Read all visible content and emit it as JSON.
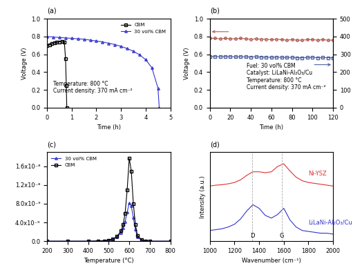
{
  "chart_data": [
    {
      "type": "line",
      "panel": "(a)",
      "x_label": "Time (h)",
      "y_label": "Voltage (V)",
      "xlim": [
        0,
        5
      ],
      "xticks": [
        0,
        1,
        2,
        3,
        4,
        5
      ],
      "ylim": [
        0.0,
        1.0
      ],
      "yticks": [
        0.0,
        0.2,
        0.4,
        0.6,
        0.8,
        1.0
      ],
      "legend": "upper right",
      "annotations": [
        "Temperature: 800 °C",
        "Current density: 370 mA cm⁻²"
      ],
      "series": [
        {
          "name": "CBM",
          "color": "#000000",
          "marker": "square",
          "x": [
            0,
            0.1,
            0.2,
            0.3,
            0.4,
            0.5,
            0.6,
            0.7,
            0.75,
            0.78,
            0.8
          ],
          "values": [
            0.7,
            0.71,
            0.72,
            0.73,
            0.735,
            0.74,
            0.745,
            0.74,
            0.55,
            0.25,
            0.0
          ]
        },
        {
          "name": "30 vol% CBM",
          "color": "#3333cc",
          "marker": "triangle",
          "x": [
            0,
            0.25,
            0.5,
            0.75,
            1,
            1.25,
            1.5,
            1.75,
            2,
            2.25,
            2.5,
            2.75,
            3,
            3.25,
            3.5,
            3.75,
            4,
            4.25,
            4.5,
            4.55
          ],
          "values": [
            0.8,
            0.795,
            0.79,
            0.785,
            0.78,
            0.775,
            0.77,
            0.76,
            0.75,
            0.74,
            0.725,
            0.71,
            0.69,
            0.665,
            0.635,
            0.595,
            0.54,
            0.45,
            0.22,
            0.0
          ]
        }
      ]
    },
    {
      "type": "line",
      "panel": "(b)",
      "x_label": "Time (h)",
      "y_label": "Voltage (V)",
      "xlim": [
        0,
        120
      ],
      "xticks": [
        0,
        20,
        40,
        60,
        80,
        100,
        120
      ],
      "ylim": [
        0.0,
        1.0
      ],
      "yticks": [
        0.0,
        0.2,
        0.4,
        0.6,
        0.8,
        1.0
      ],
      "y2lim": [
        0,
        500
      ],
      "y2ticks": [
        0,
        100,
        200,
        300,
        400,
        500
      ],
      "annotations": [
        "Fuel: 30 vol% CBM",
        "Catalyst: LiLaNi-Al₂O₃/Cu",
        "Temperature: 800 °C",
        "Current density: 370 mA cm⁻²"
      ],
      "series": [
        {
          "color": "#b05a50",
          "marker": "circle",
          "x": [
            0,
            5,
            10,
            15,
            20,
            25,
            30,
            35,
            40,
            45,
            50,
            55,
            60,
            65,
            70,
            75,
            80,
            85,
            90,
            95,
            100,
            105,
            110,
            115,
            120
          ],
          "values": [
            0.78,
            0.78,
            0.775,
            0.78,
            0.775,
            0.775,
            0.78,
            0.775,
            0.77,
            0.775,
            0.77,
            0.77,
            0.765,
            0.77,
            0.765,
            0.76,
            0.765,
            0.76,
            0.76,
            0.765,
            0.765,
            0.76,
            0.765,
            0.76,
            0.76
          ]
        },
        {
          "color": "#5060a0",
          "marker": "square",
          "axis": "y2",
          "x": [
            0,
            5,
            10,
            15,
            20,
            25,
            30,
            35,
            40,
            45,
            50,
            55,
            60,
            65,
            70,
            75,
            80,
            85,
            90,
            95,
            100,
            105,
            110,
            115,
            120
          ],
          "values": [
            289,
            288,
            287,
            288,
            287,
            286,
            287,
            286,
            285,
            286,
            285,
            284,
            283,
            284,
            283,
            282,
            283,
            281,
            281,
            282,
            283,
            281,
            282,
            281,
            281
          ]
        }
      ]
    },
    {
      "type": "line",
      "panel": "(c)",
      "x_label": "Temperature (°C)",
      "xlim": [
        200,
        800
      ],
      "xticks": [
        200,
        300,
        400,
        500,
        600,
        700,
        800
      ],
      "ylim": [
        0,
        1.9e-08
      ],
      "yticks": [
        {
          "value": 0,
          "label": "0.0"
        },
        {
          "value": 4e-09,
          "label": "4.0x10⁻⁹"
        },
        {
          "value": 8e-09,
          "label": "8.0x10⁻⁹"
        },
        {
          "value": 1.2e-08,
          "label": "1.2x10⁻⁸"
        },
        {
          "value": 1.6e-08,
          "label": "1.6x10⁻⁸"
        }
      ],
      "legend": "upper left",
      "series": [
        {
          "name": "30 vol% CBM",
          "color": "#3333cc",
          "marker": "triangle",
          "x": [
            200,
            300,
            400,
            450,
            480,
            500,
            520,
            540,
            560,
            570,
            580,
            590,
            600,
            610,
            620,
            630,
            640,
            660,
            680,
            700,
            800
          ],
          "values": [
            0,
            0,
            0,
            5e-11,
            1e-10,
            2e-10,
            4e-10,
            9e-10,
            1.8e-09,
            2.8e-09,
            4.2e-09,
            6.2e-09,
            8.2e-09,
            7.5e-09,
            5e-09,
            2.5e-09,
            9e-10,
            2e-10,
            5e-11,
            0,
            0
          ]
        },
        {
          "name": "CBM",
          "color": "#000000",
          "marker": "square",
          "x": [
            200,
            300,
            400,
            450,
            480,
            500,
            520,
            540,
            560,
            570,
            580,
            590,
            600,
            610,
            620,
            630,
            640,
            660,
            680,
            700,
            800
          ],
          "values": [
            0,
            0,
            0,
            5e-11,
            1e-10,
            2e-10,
            4e-10,
            1e-09,
            2.2e-09,
            3.5e-09,
            6e-09,
            1.1e-08,
            1.77e-08,
            1.5e-08,
            8e-09,
            3.5e-09,
            1.2e-09,
            3e-10,
            1e-10,
            0,
            0
          ]
        }
      ]
    },
    {
      "type": "line",
      "panel": "(d)",
      "x_label": "Wavenumber (cm⁻¹)",
      "y_label": "Intensity (a.u.)",
      "xlim": [
        1000,
        2000
      ],
      "xticks": [
        1000,
        1200,
        1400,
        1600,
        1800,
        2000
      ],
      "ylim": [
        0,
        1
      ],
      "tick_labels": "x",
      "bands": [
        {
          "text": "D",
          "x": 1345
        },
        {
          "text": "G",
          "x": 1585
        }
      ],
      "series": [
        {
          "name": "Ni-YSZ",
          "color": "#e03030",
          "x": [
            1000,
            1050,
            1100,
            1150,
            1200,
            1250,
            1300,
            1350,
            1400,
            1450,
            1500,
            1550,
            1600,
            1650,
            1700,
            1750,
            1800,
            1850,
            1900,
            1950,
            2000
          ],
          "values": [
            0.62,
            0.63,
            0.635,
            0.645,
            0.66,
            0.69,
            0.74,
            0.78,
            0.78,
            0.77,
            0.78,
            0.84,
            0.87,
            0.79,
            0.72,
            0.68,
            0.66,
            0.65,
            0.64,
            0.63,
            0.62
          ]
        },
        {
          "name": "LiLaNi-Al₂O₃/Cu",
          "color": "#3333cc",
          "x": [
            1000,
            1050,
            1100,
            1150,
            1200,
            1250,
            1300,
            1350,
            1400,
            1450,
            1500,
            1550,
            1600,
            1650,
            1700,
            1750,
            1800,
            1850,
            1900,
            1950,
            2000
          ],
          "values": [
            0.12,
            0.13,
            0.14,
            0.16,
            0.19,
            0.25,
            0.34,
            0.41,
            0.37,
            0.29,
            0.26,
            0.3,
            0.37,
            0.24,
            0.16,
            0.12,
            0.11,
            0.1,
            0.09,
            0.09,
            0.08
          ]
        }
      ]
    }
  ]
}
